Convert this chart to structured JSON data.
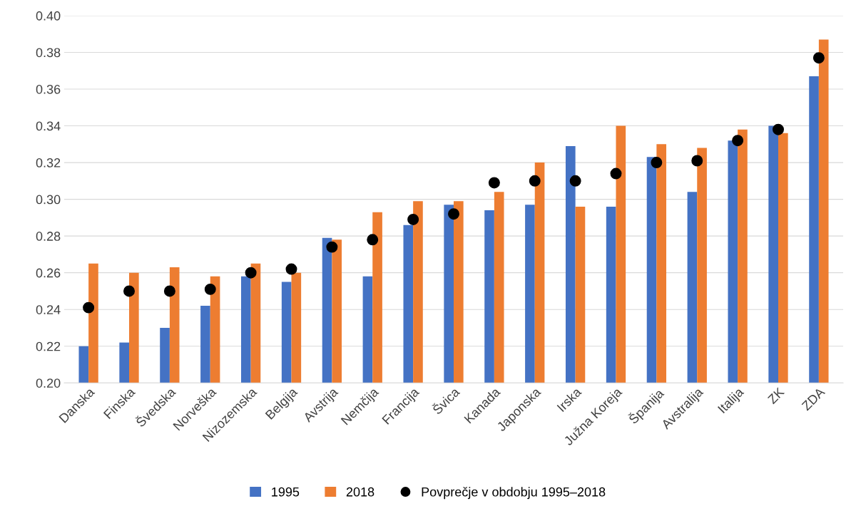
{
  "chart_data": {
    "type": "bar",
    "categories": [
      "Danska",
      "Finska",
      "Švedska",
      "Norveška",
      "Nizozemska",
      "Belgija",
      "Avstrija",
      "Nemčija",
      "Francija",
      "Švica",
      "Kanada",
      "Japonska",
      "Irska",
      "Južna Koreja",
      "Španija",
      "Avstralija",
      "Italija",
      "ZK",
      "ZDA"
    ],
    "series": [
      {
        "name": "1995",
        "color": "#4472c4",
        "values": [
          0.22,
          0.222,
          0.23,
          0.242,
          0.258,
          0.255,
          0.279,
          0.258,
          0.286,
          0.297,
          0.294,
          0.297,
          0.329,
          0.296,
          0.323,
          0.304,
          0.332,
          0.34,
          0.367
        ]
      },
      {
        "name": "2018",
        "color": "#ed7d31",
        "values": [
          0.265,
          0.26,
          0.263,
          0.258,
          0.265,
          0.26,
          0.278,
          0.293,
          0.299,
          0.299,
          0.304,
          0.32,
          0.296,
          0.34,
          0.33,
          0.328,
          0.338,
          0.336,
          0.387
        ]
      },
      {
        "name": "Povprečje v obdobju 1995–2018",
        "type": "scatter",
        "color": "#000000",
        "marker": "circle",
        "values": [
          0.241,
          0.25,
          0.25,
          0.251,
          0.26,
          0.262,
          0.274,
          0.278,
          0.289,
          0.292,
          0.309,
          0.31,
          0.31,
          0.314,
          0.32,
          0.321,
          0.332,
          0.338,
          0.377
        ]
      }
    ],
    "ylim": [
      0.2,
      0.4
    ],
    "yticks": [
      {
        "value": 0.2,
        "label": "0.20"
      },
      {
        "value": 0.22,
        "label": "0.22"
      },
      {
        "value": 0.24,
        "label": "0.24"
      },
      {
        "value": 0.26,
        "label": "0.26"
      },
      {
        "value": 0.28,
        "label": "0.28"
      },
      {
        "value": 0.3,
        "label": "0.30"
      },
      {
        "value": 0.32,
        "label": "0.32"
      },
      {
        "value": 0.34,
        "label": "0.34"
      },
      {
        "value": 0.36,
        "label": "0.36"
      },
      {
        "value": 0.38,
        "label": "0.38"
      },
      {
        "value": 0.4,
        "label": "0.40"
      }
    ],
    "grid": "y",
    "legend": "bottom"
  }
}
